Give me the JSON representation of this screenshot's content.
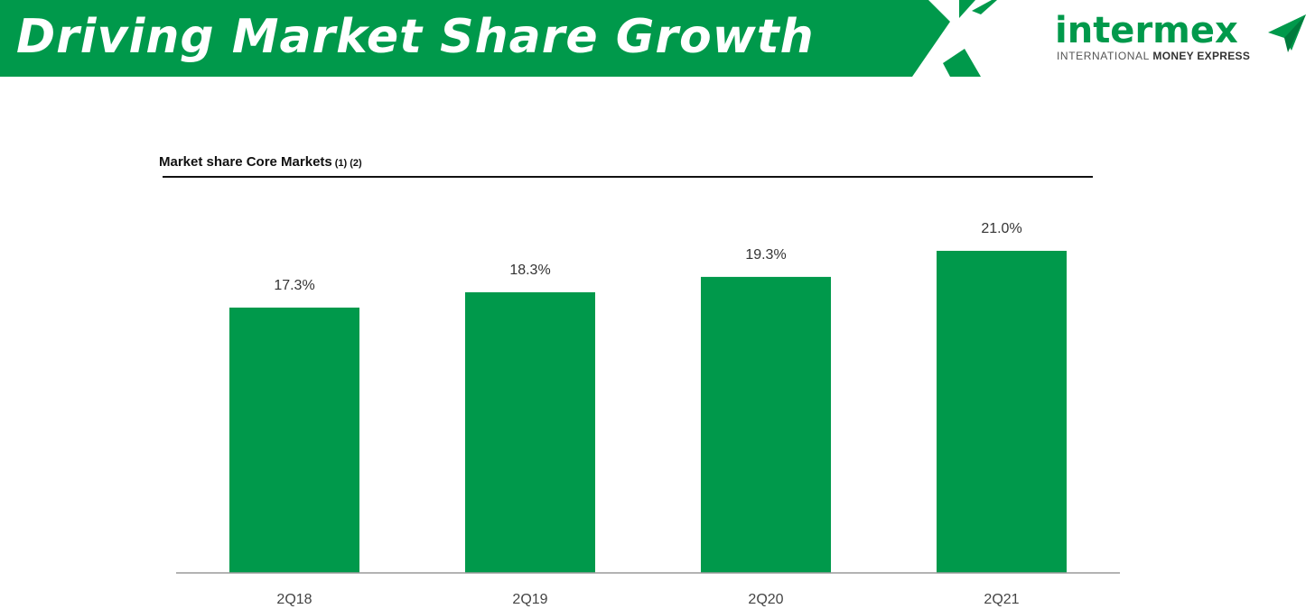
{
  "header": {
    "title": "Driving Market Share Growth",
    "brand_color": "#00994b",
    "logo": {
      "wordmark": "intermex",
      "tagline_regular": "INTERNATIONAL",
      "tagline_bold": "MONEY EXPRESS"
    }
  },
  "chart_section": {
    "heading": "Market share Core Markets",
    "heading_notes": "(1) (2)"
  },
  "chart_data": {
    "type": "bar",
    "title": "Market share Core Markets",
    "categories": [
      "2Q18",
      "2Q19",
      "2Q20",
      "2Q21"
    ],
    "values": [
      17.3,
      18.3,
      19.3,
      21.0
    ],
    "data_labels": [
      "17.3%",
      "18.3%",
      "19.3%",
      "21.0%"
    ],
    "unit": "%",
    "xlabel": "",
    "ylabel": "",
    "ylim": [
      0,
      21.0
    ],
    "grid": false,
    "legend": "none",
    "bar_color": "#00994b"
  }
}
